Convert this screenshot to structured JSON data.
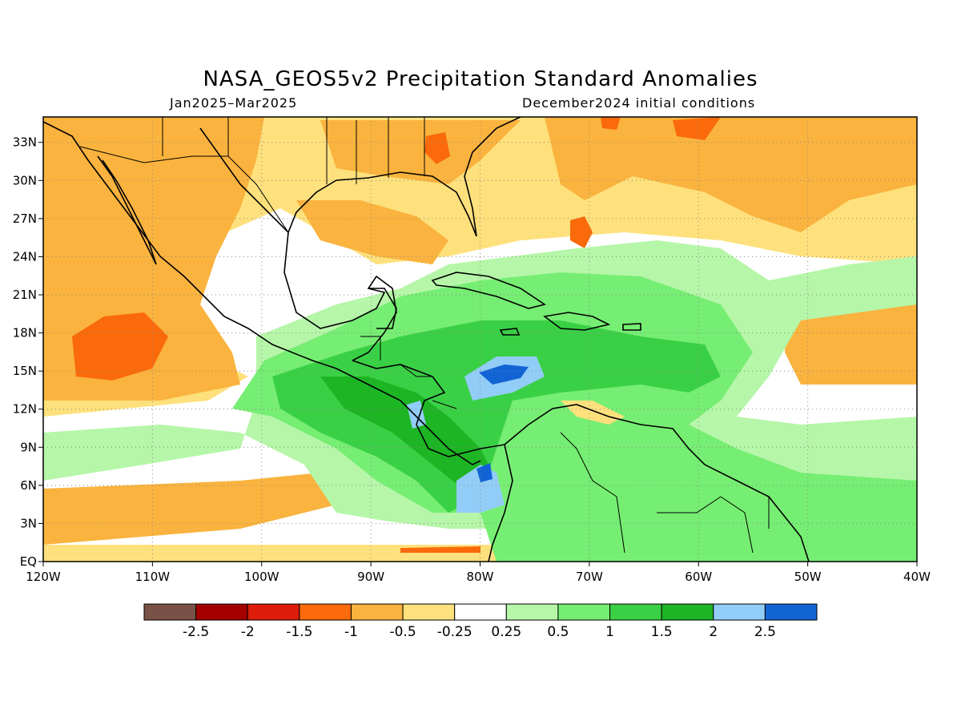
{
  "title": "NASA_GEOS5v2 Precipitation Standard Anomalies",
  "period": "Jan2025–Mar2025",
  "init": "December2024 initial conditions",
  "map": {
    "lon_range": [
      -120,
      -40
    ],
    "lat_range": [
      0,
      35
    ],
    "x_ticks": [
      "120W",
      "110W",
      "100W",
      "90W",
      "80W",
      "70W",
      "60W",
      "50W",
      "40W"
    ],
    "y_ticks": [
      "EQ",
      "3N",
      "6N",
      "9N",
      "12N",
      "15N",
      "18N",
      "21N",
      "24N",
      "27N",
      "30N",
      "33N"
    ],
    "grid": "dotted",
    "regions": [
      {
        "name": "gulf-high-dry",
        "color": "#f9b93a"
      },
      {
        "name": "caribbean-wet",
        "color": "#3ec84a"
      },
      {
        "name": "caribbean-core",
        "color": "#6fa3f0"
      },
      {
        "name": "pacific-dry",
        "color": "#fa6a0a"
      }
    ]
  },
  "colorbar": {
    "colors": [
      "#7a5146",
      "#a40000",
      "#dd1c0a",
      "#fc6a0c",
      "#fab33e",
      "#fee17c",
      "#ffffff",
      "#b6f6a9",
      "#76ee73",
      "#3ad046",
      "#1db524",
      "#92cdf7",
      "#1264d5"
    ],
    "labels": [
      "-2.5",
      "-2",
      "-1.5",
      "-1",
      "-0.5",
      "-0.25",
      "0.25",
      "0.5",
      "1",
      "1.5",
      "2",
      "2.5"
    ]
  }
}
